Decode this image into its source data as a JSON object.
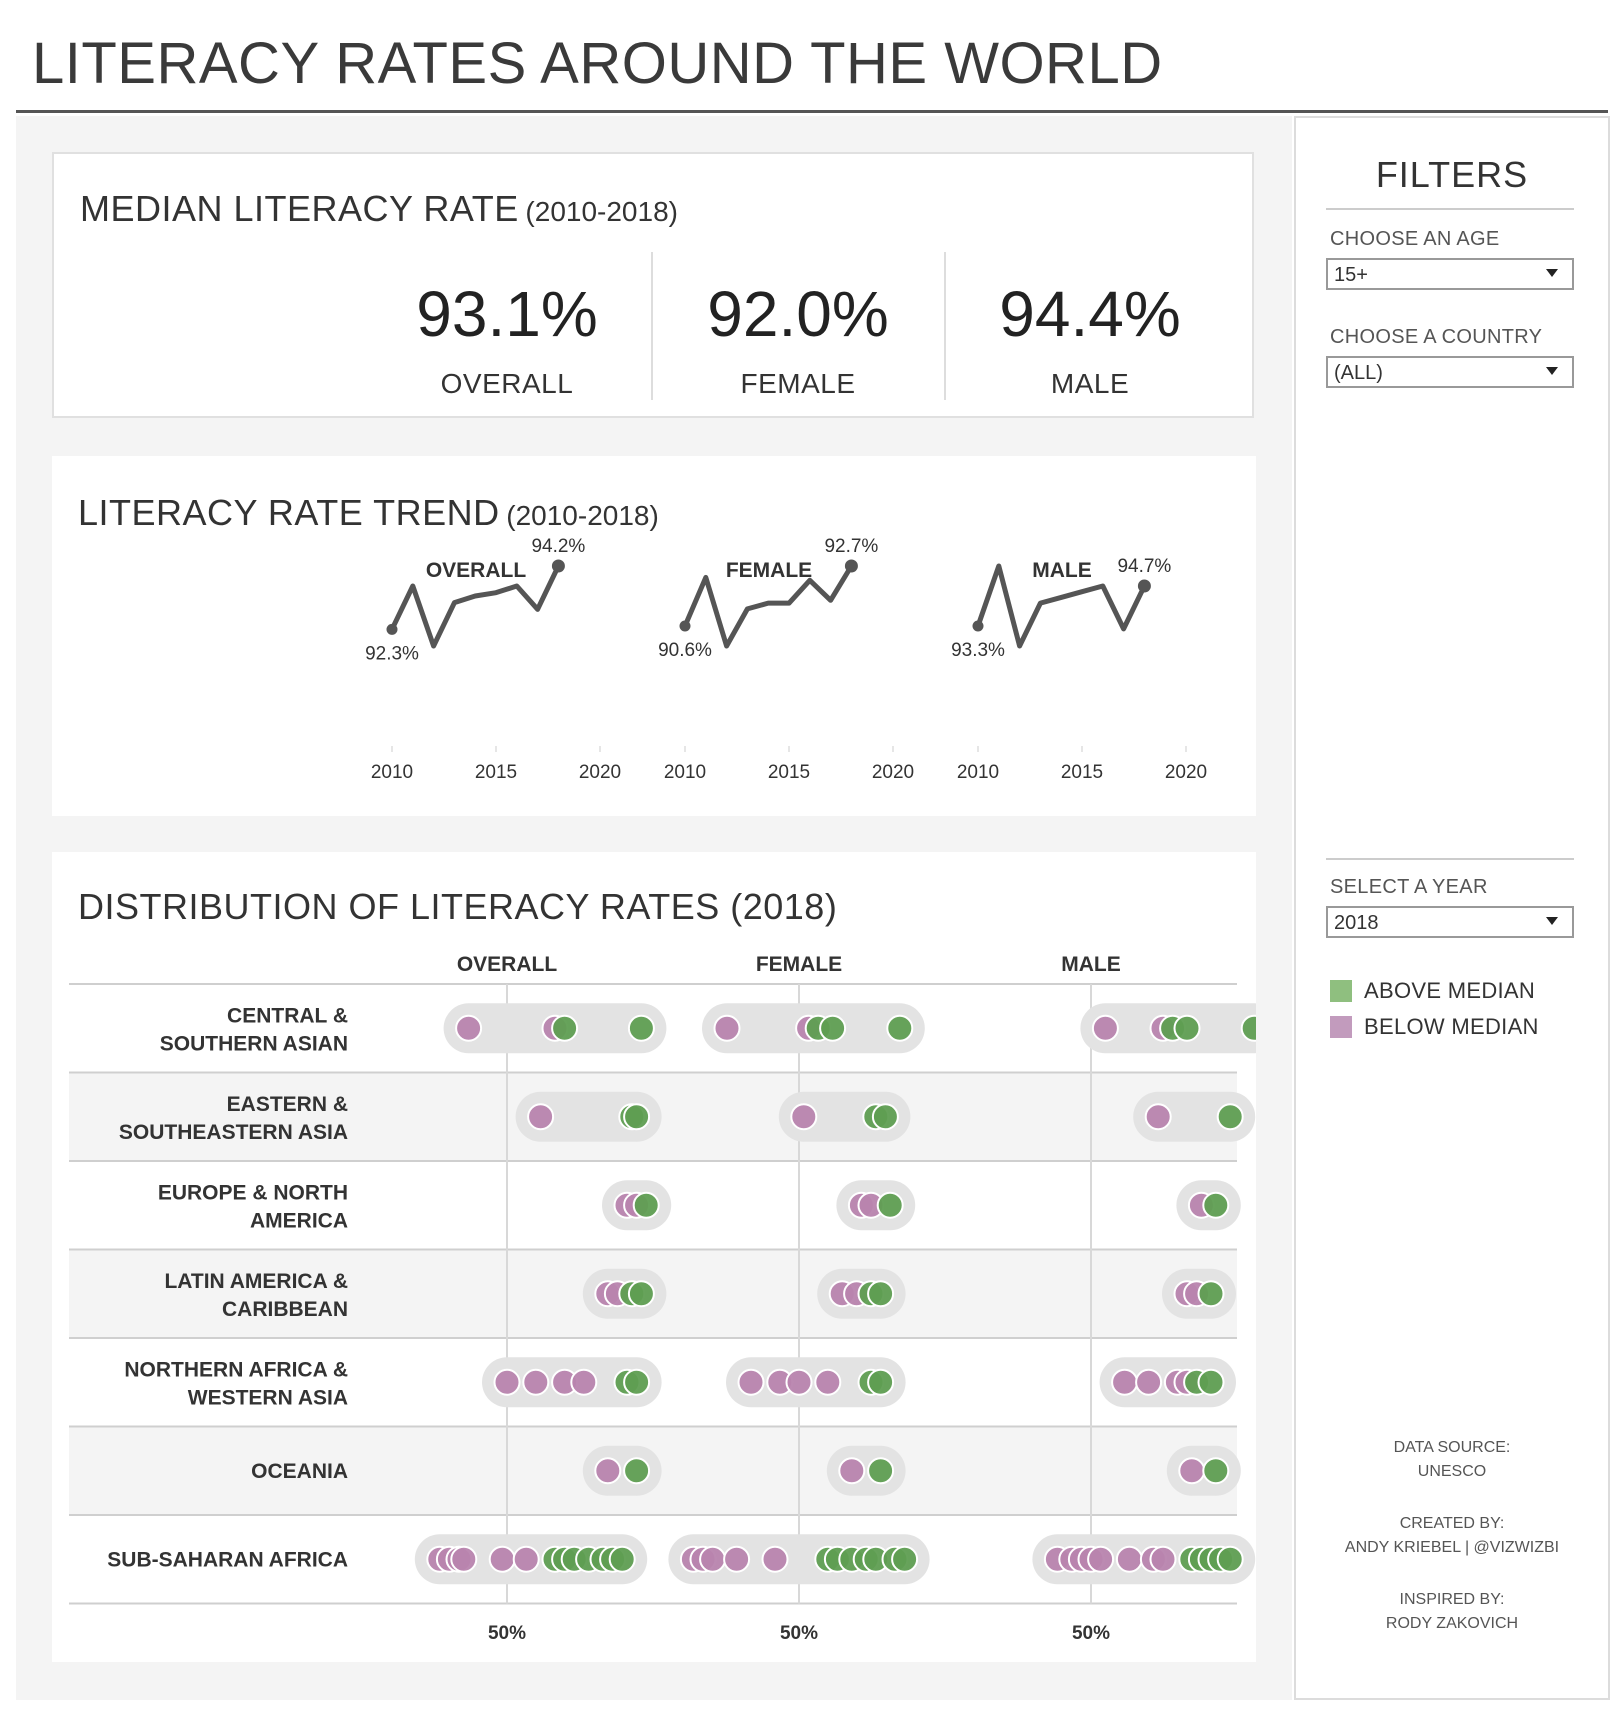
{
  "page_title": "LITERACY RATES AROUND THE WORLD",
  "kpi": {
    "title": "MEDIAN LITERACY RATE",
    "subtitle": "(2010-2018)",
    "items": [
      {
        "value": "93.1%",
        "label": "OVERALL"
      },
      {
        "value": "92.0%",
        "label": "FEMALE"
      },
      {
        "value": "94.4%",
        "label": "MALE"
      }
    ]
  },
  "trend": {
    "title": "LITERACY RATE TREND",
    "subtitle": "(2010-2018)"
  },
  "distribution": {
    "title": "DISTRIBUTION OF LITERACY RATES (2018)"
  },
  "filters": {
    "title": "FILTERS",
    "age_label": "CHOOSE AN AGE",
    "age_value": "15+",
    "country_label": "CHOOSE A COUNTRY",
    "country_value": "(ALL)",
    "year_label": "SELECT A YEAR",
    "year_value": "2018",
    "legend": [
      {
        "label": "ABOVE MEDIAN",
        "color": "#8fbf7f"
      },
      {
        "label": "BELOW MEDIAN",
        "color": "#c29bbd"
      }
    ],
    "credits": {
      "source_label": "DATA SOURCE:",
      "source_value": "UNESCO",
      "created_label": "CREATED BY:",
      "created_value": "ANDY KRIEBEL | @VIZWIZBI",
      "inspired_label": "INSPIRED BY:",
      "inspired_value": "RODY ZAKOVICH"
    }
  },
  "colors": {
    "above_median": "#5f9e52",
    "below_median": "#b884ae",
    "trend_line": "#555555",
    "range_pill": "#e3e3e3"
  },
  "chart_data": [
    {
      "type": "line",
      "title": "",
      "panels": [
        {
          "name": "OVERALL",
          "x": [
            2010,
            2011,
            2012,
            2013,
            2014,
            2015,
            2016,
            2017,
            2018
          ],
          "y": [
            92.3,
            93.6,
            91.8,
            93.1,
            93.3,
            93.4,
            93.6,
            92.9,
            94.2
          ],
          "start_label": "92.3%",
          "end_label": "94.2%"
        },
        {
          "name": "FEMALE",
          "x": [
            2010,
            2011,
            2012,
            2013,
            2014,
            2015,
            2016,
            2017,
            2018
          ],
          "y": [
            90.6,
            92.3,
            89.9,
            91.2,
            91.4,
            91.4,
            92.2,
            91.5,
            92.7
          ],
          "start_label": "90.6%",
          "end_label": "92.7%"
        },
        {
          "name": "MALE",
          "x": [
            2010,
            2011,
            2012,
            2013,
            2014,
            2015,
            2016,
            2017,
            2018
          ],
          "y": [
            93.3,
            95.4,
            92.6,
            94.1,
            94.3,
            94.5,
            94.7,
            93.2,
            94.7
          ],
          "start_label": "93.3%",
          "end_label": "94.7%"
        }
      ],
      "x_ticks": [
        "2010",
        "2015",
        "2020"
      ],
      "xlim": [
        2010,
        2020
      ]
    },
    {
      "type": "scatter",
      "title": "",
      "column_headers": [
        "OVERALL",
        "FEMALE",
        "MALE"
      ],
      "x_tick_label": "50%",
      "xlim": [
        30,
        100
      ],
      "regions": [
        {
          "name": "CENTRAL & SOUTHERN ASIAN",
          "overall": [
            {
              "v": 42,
              "a": 0
            },
            {
              "v": 60,
              "a": 0
            },
            {
              "v": 62,
              "a": 1
            },
            {
              "v": 78,
              "a": 1
            }
          ],
          "female": [
            {
              "v": 35,
              "a": 0
            },
            {
              "v": 52,
              "a": 0
            },
            {
              "v": 54,
              "a": 1
            },
            {
              "v": 57,
              "a": 1
            },
            {
              "v": 71,
              "a": 1
            }
          ],
          "male": [
            {
              "v": 53,
              "a": 0
            },
            {
              "v": 65,
              "a": 0
            },
            {
              "v": 67,
              "a": 1
            },
            {
              "v": 70,
              "a": 1
            },
            {
              "v": 84,
              "a": 1
            }
          ]
        },
        {
          "name": "EASTERN & SOUTHEASTERN ASIA",
          "overall": [
            {
              "v": 57,
              "a": 0
            },
            {
              "v": 76,
              "a": 1
            },
            {
              "v": 77,
              "a": 1
            }
          ],
          "female": [
            {
              "v": 51,
              "a": 0
            },
            {
              "v": 66,
              "a": 1
            },
            {
              "v": 68,
              "a": 1
            }
          ],
          "male": [
            {
              "v": 64,
              "a": 0
            },
            {
              "v": 79,
              "a": 1
            }
          ]
        },
        {
          "name": "EUROPE & NORTH AMERICA",
          "overall": [
            {
              "v": 75,
              "a": 0
            },
            {
              "v": 77,
              "a": 0
            },
            {
              "v": 79,
              "a": 1
            }
          ],
          "female": [
            {
              "v": 63,
              "a": 0
            },
            {
              "v": 65,
              "a": 0
            },
            {
              "v": 69,
              "a": 1
            }
          ],
          "male": [
            {
              "v": 73,
              "a": 0
            },
            {
              "v": 76,
              "a": 1
            }
          ]
        },
        {
          "name": "LATIN AMERICA & CARIBBEAN",
          "overall": [
            {
              "v": 71,
              "a": 0
            },
            {
              "v": 73,
              "a": 0
            },
            {
              "v": 76,
              "a": 1
            },
            {
              "v": 78,
              "a": 1
            }
          ],
          "female": [
            {
              "v": 59,
              "a": 0
            },
            {
              "v": 62,
              "a": 0
            },
            {
              "v": 65,
              "a": 1
            },
            {
              "v": 67,
              "a": 1
            }
          ],
          "male": [
            {
              "v": 70,
              "a": 0
            },
            {
              "v": 72,
              "a": 0
            },
            {
              "v": 75,
              "a": 1
            }
          ]
        },
        {
          "name": "NORTHERN AFRICA & WESTERN ASIA",
          "overall": [
            {
              "v": 50,
              "a": 0
            },
            {
              "v": 56,
              "a": 0
            },
            {
              "v": 62,
              "a": 0
            },
            {
              "v": 66,
              "a": 0
            },
            {
              "v": 75,
              "a": 1
            },
            {
              "v": 77,
              "a": 1
            }
          ],
          "female": [
            {
              "v": 40,
              "a": 0
            },
            {
              "v": 46,
              "a": 0
            },
            {
              "v": 50,
              "a": 0
            },
            {
              "v": 56,
              "a": 0
            },
            {
              "v": 65,
              "a": 1
            },
            {
              "v": 67,
              "a": 1
            }
          ],
          "male": [
            {
              "v": 57,
              "a": 0
            },
            {
              "v": 62,
              "a": 0
            },
            {
              "v": 68,
              "a": 0
            },
            {
              "v": 70,
              "a": 0
            },
            {
              "v": 72,
              "a": 1
            },
            {
              "v": 75,
              "a": 1
            }
          ]
        },
        {
          "name": "OCEANIA",
          "overall": [
            {
              "v": 71,
              "a": 0
            },
            {
              "v": 77,
              "a": 1
            }
          ],
          "female": [
            {
              "v": 61,
              "a": 0
            },
            {
              "v": 67,
              "a": 1
            }
          ],
          "male": [
            {
              "v": 71,
              "a": 0
            },
            {
              "v": 76,
              "a": 1
            }
          ]
        },
        {
          "name": "SUB-SAHARAN AFRICA",
          "overall": [
            {
              "v": 36,
              "a": 0
            },
            {
              "v": 38,
              "a": 0
            },
            {
              "v": 40,
              "a": 0
            },
            {
              "v": 41,
              "a": 0
            },
            {
              "v": 49,
              "a": 0
            },
            {
              "v": 54,
              "a": 0
            },
            {
              "v": 60,
              "a": 1
            },
            {
              "v": 62,
              "a": 1
            },
            {
              "v": 64,
              "a": 1
            },
            {
              "v": 67,
              "a": 1
            },
            {
              "v": 70,
              "a": 1
            },
            {
              "v": 72,
              "a": 1
            },
            {
              "v": 74,
              "a": 1
            }
          ],
          "female": [
            {
              "v": 28,
              "a": 0
            },
            {
              "v": 30,
              "a": 0
            },
            {
              "v": 32,
              "a": 0
            },
            {
              "v": 37,
              "a": 0
            },
            {
              "v": 45,
              "a": 0
            },
            {
              "v": 56,
              "a": 1
            },
            {
              "v": 58,
              "a": 1
            },
            {
              "v": 61,
              "a": 1
            },
            {
              "v": 64,
              "a": 1
            },
            {
              "v": 66,
              "a": 1
            },
            {
              "v": 70,
              "a": 1
            },
            {
              "v": 72,
              "a": 1
            }
          ],
          "male": [
            {
              "v": 43,
              "a": 0
            },
            {
              "v": 46,
              "a": 0
            },
            {
              "v": 48,
              "a": 0
            },
            {
              "v": 50,
              "a": 0
            },
            {
              "v": 52,
              "a": 0
            },
            {
              "v": 58,
              "a": 0
            },
            {
              "v": 63,
              "a": 0
            },
            {
              "v": 65,
              "a": 0
            },
            {
              "v": 71,
              "a": 1
            },
            {
              "v": 73,
              "a": 1
            },
            {
              "v": 75,
              "a": 1
            },
            {
              "v": 77,
              "a": 1
            },
            {
              "v": 79,
              "a": 1
            }
          ]
        }
      ]
    }
  ]
}
